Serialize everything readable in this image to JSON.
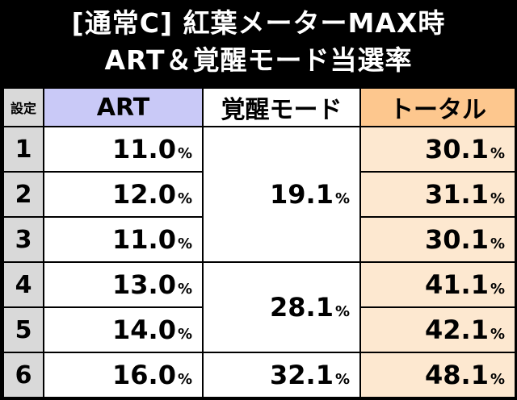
{
  "title": {
    "line1": "[通常C] 紅葉メーターMAX時",
    "line2": "ART＆覚醒モード当選率"
  },
  "headers": {
    "setting": "設定",
    "art": "ART",
    "kakusei": "覚醒モード",
    "total": "トータル"
  },
  "percent_sign": "%",
  "rows": [
    {
      "setting": "1",
      "art": "11.0",
      "total": "30.1"
    },
    {
      "setting": "2",
      "art": "12.0",
      "total": "31.1"
    },
    {
      "setting": "3",
      "art": "11.0",
      "total": "30.1"
    },
    {
      "setting": "4",
      "art": "13.0",
      "total": "41.1"
    },
    {
      "setting": "5",
      "art": "14.0",
      "total": "42.1"
    },
    {
      "setting": "6",
      "art": "16.0",
      "total": "48.1"
    }
  ],
  "kakusei_groups": {
    "g1": "19.1",
    "g2": "28.1",
    "g3": "32.1"
  }
}
